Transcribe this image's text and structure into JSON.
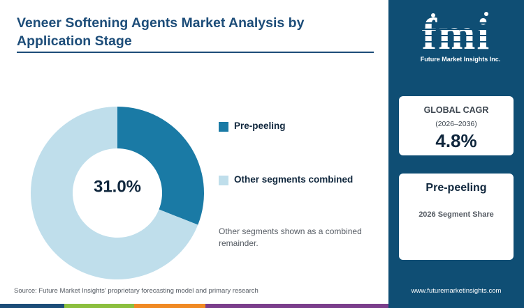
{
  "title": "Veneer Softening Agents Market Analysis by Application Stage",
  "chart_data": {
    "type": "pie",
    "style": "donut",
    "slices": [
      {
        "label": "Pre-peeling",
        "value": 31.0,
        "color": "#1a7aa5"
      },
      {
        "label": "Other segments combined",
        "value": 69.0,
        "color": "#bfdeeb"
      }
    ],
    "center_label": "31.0%",
    "legend_position": "right",
    "note": "Other segments shown as a combined remainder."
  },
  "source": "Source: Future Market Insights' proprietary forecasting model and primary research",
  "sidebar": {
    "logo_text": "fmi",
    "logo_tagline": "Future Market Insights Inc.",
    "cagr_card": {
      "label": "GLOBAL CAGR",
      "period": "(2026–2036)",
      "value": "4.8%"
    },
    "segment_card": {
      "name": "Pre-peeling",
      "caption": "2026 Segment Share"
    },
    "website": "www.futuremarketinsights.com"
  },
  "colors": {
    "sidebar_bg": "#0f4e74",
    "title": "#1d4d79",
    "bottom_bar": [
      "#1d4d79",
      "#8cbf3f",
      "#f08a24",
      "#7b3f8c"
    ]
  }
}
